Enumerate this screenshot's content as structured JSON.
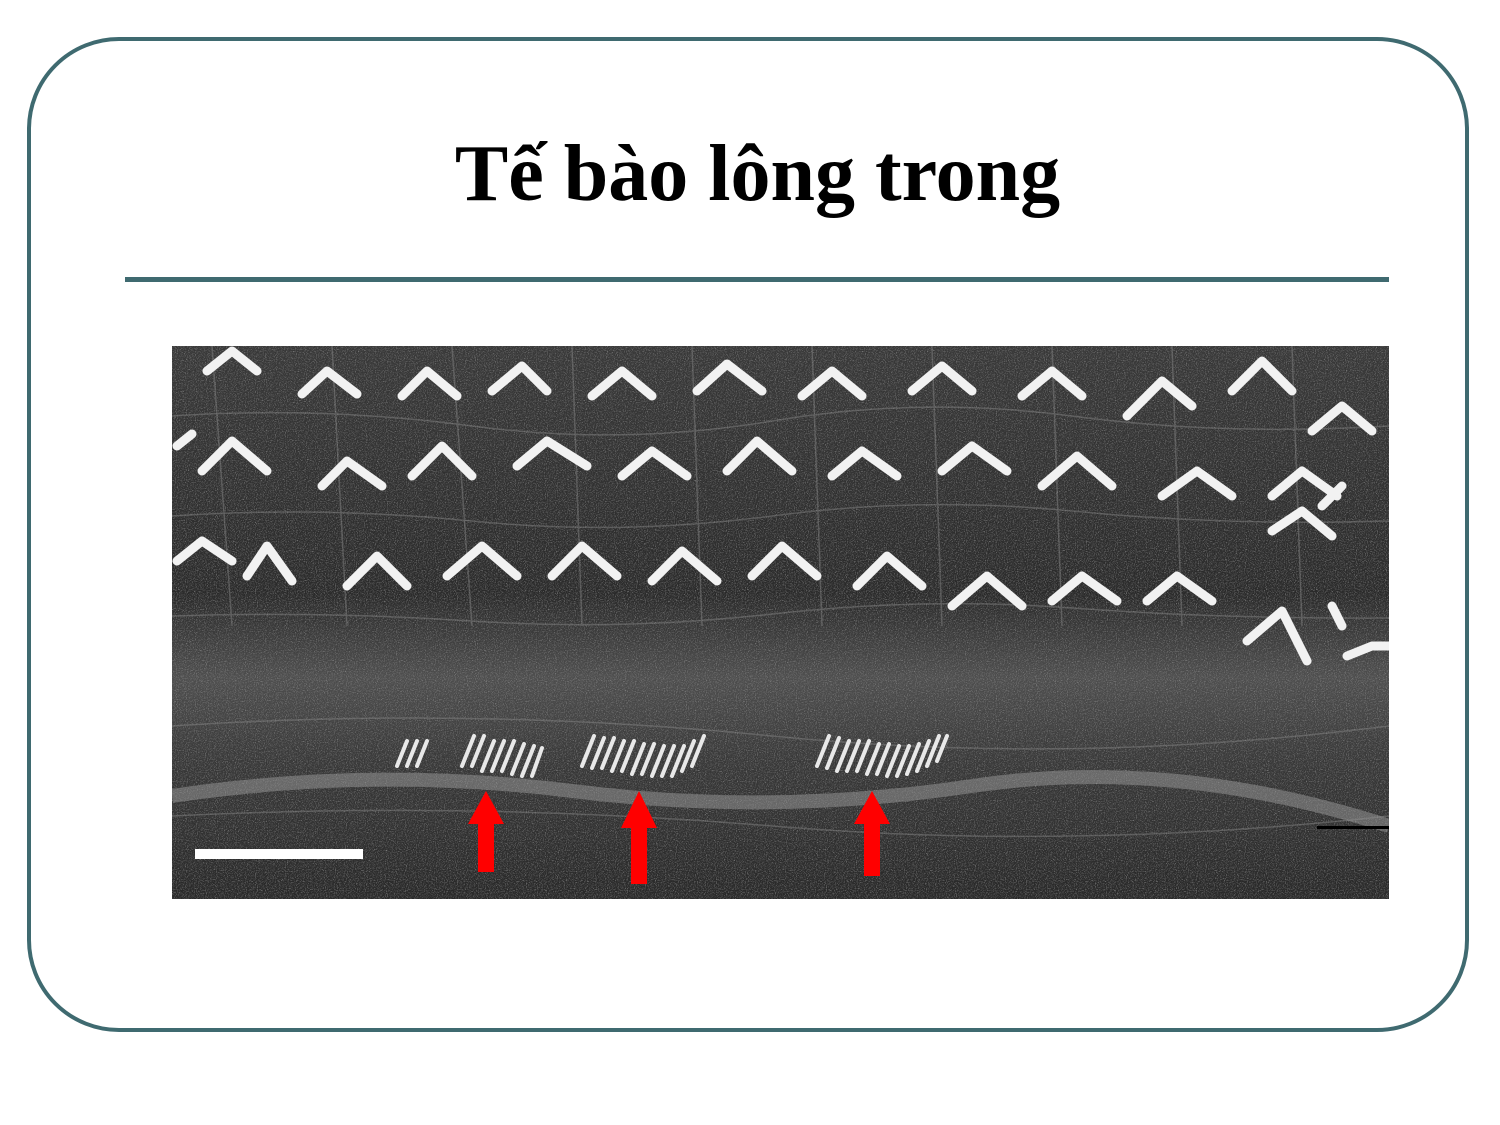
{
  "slide": {
    "title": "Tế bào lông trong"
  },
  "figure": {
    "kind": "grayscale electron micrograph of cochlear hair cells",
    "arrow_color": "#ff0000",
    "arrow_count": 3,
    "scale_bar_color": "#ffffff"
  },
  "theme": {
    "frame_color": "#3f6a70",
    "background": "#ffffff"
  }
}
